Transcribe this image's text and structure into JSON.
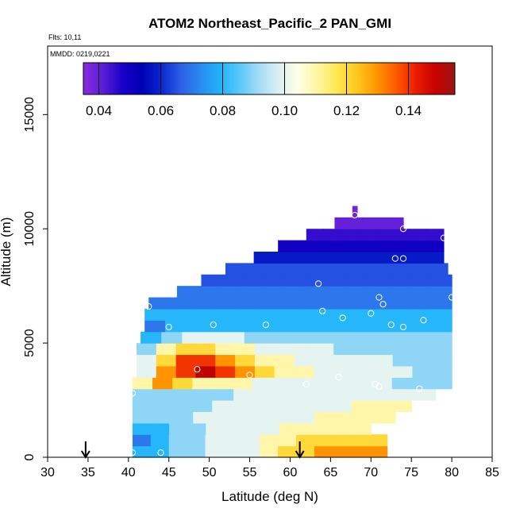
{
  "chart_data": {
    "type": "heatmap",
    "title": "ATOM2 Northeast_Pacific_2 PAN_GMI",
    "flights_label": "Flts: 10,11",
    "mmdd_label": "MMDD: 0219,0221",
    "xlabel": "Latitude (deg N)",
    "ylabel": "Altitude (m)",
    "xlim": [
      30,
      85
    ],
    "ylim": [
      0,
      18000
    ],
    "x_ticks": [
      30,
      35,
      40,
      45,
      50,
      55,
      60,
      65,
      70,
      75,
      80,
      85
    ],
    "y_ticks": [
      0,
      5000,
      10000,
      15000
    ],
    "colorbar": {
      "range": [
        0.035,
        0.155
      ],
      "ticks": [
        0.04,
        0.06,
        0.08,
        0.1,
        0.12,
        0.14
      ],
      "tick_labels": [
        "0.04",
        "0.06",
        "0.08",
        "0.10",
        "0.12",
        "0.14"
      ],
      "colors": [
        "#8a2be2",
        "#5a1ed6",
        "#1a00c8",
        "#0000b4",
        "#0a28d0",
        "#2d5fe6",
        "#2a8cf0",
        "#1eb4fa",
        "#5ac8fa",
        "#a5dcf5",
        "#dcf0f5",
        "#ffffe6",
        "#fff5a0",
        "#ffe650",
        "#ffc81e",
        "#ff9600",
        "#ff5a00",
        "#eb1e00",
        "#c80000",
        "#9b1414"
      ]
    },
    "layers": [
      {
        "alt": [
          0,
          500
        ],
        "lat": [
          40.5,
          72
        ],
        "values": [
          0.08,
          0.08,
          0.09,
          0.09,
          0.1,
          0.1,
          0.1,
          0.11,
          0.12,
          0.12,
          0.13,
          0.13,
          0.13,
          0.13
        ]
      },
      {
        "alt": [
          500,
          1000
        ],
        "lat": [
          40.5,
          72
        ],
        "values": [
          0.07,
          0.08,
          0.09,
          0.09,
          0.1,
          0.1,
          0.1,
          0.11,
          0.11,
          0.12,
          0.12,
          0.12,
          0.12,
          0.12
        ]
      },
      {
        "alt": [
          1000,
          1500
        ],
        "lat": [
          40.5,
          70
        ],
        "values": [
          0.08,
          0.08,
          0.09,
          0.09,
          0.1,
          0.1,
          0.1,
          0.1,
          0.11,
          0.11,
          0.11,
          0.11,
          0.11
        ]
      },
      {
        "alt": [
          1500,
          2000
        ],
        "lat": [
          40.5,
          73
        ],
        "values": [
          0.09,
          0.09,
          0.09,
          0.1,
          0.1,
          0.1,
          0.1,
          0.1,
          0.1,
          0.11,
          0.11,
          0.11,
          0.11
        ]
      },
      {
        "alt": [
          2000,
          2500
        ],
        "lat": [
          40.5,
          75
        ],
        "values": [
          0.09,
          0.09,
          0.09,
          0.09,
          0.1,
          0.1,
          0.1,
          0.1,
          0.1,
          0.1,
          0.1,
          0.11,
          0.11,
          0.11
        ]
      },
      {
        "alt": [
          2500,
          3000
        ],
        "lat": [
          40.5,
          78
        ],
        "values": [
          0.09,
          0.09,
          0.09,
          0.09,
          0.09,
          0.1,
          0.1,
          0.1,
          0.1,
          0.1,
          0.1,
          0.1,
          0.1,
          0.1,
          0.1
        ]
      },
      {
        "alt": [
          3000,
          3500
        ],
        "lat": [
          40.5,
          80
        ],
        "values": [
          0.11,
          0.13,
          0.12,
          0.11,
          0.11,
          0.11,
          0.1,
          0.1,
          0.1,
          0.1,
          0.1,
          0.1,
          0.1,
          0.09,
          0.09,
          0.09
        ]
      },
      {
        "alt": [
          3500,
          4000
        ],
        "lat": [
          41,
          80
        ],
        "values": [
          0.1,
          0.13,
          0.14,
          0.15,
          0.14,
          0.13,
          0.12,
          0.11,
          0.11,
          0.1,
          0.1,
          0.1,
          0.1,
          0.1,
          0.09,
          0.09
        ]
      },
      {
        "alt": [
          4000,
          4500
        ],
        "lat": [
          41,
          80
        ],
        "values": [
          0.1,
          0.12,
          0.14,
          0.14,
          0.13,
          0.12,
          0.11,
          0.11,
          0.1,
          0.1,
          0.1,
          0.1,
          0.1,
          0.09,
          0.09,
          0.09
        ]
      },
      {
        "alt": [
          4500,
          5000
        ],
        "lat": [
          41,
          80
        ],
        "values": [
          0.09,
          0.11,
          0.12,
          0.12,
          0.11,
          0.11,
          0.1,
          0.1,
          0.1,
          0.1,
          0.09,
          0.09,
          0.09,
          0.09,
          0.09,
          0.09
        ]
      },
      {
        "alt": [
          5000,
          5500
        ],
        "lat": [
          41.5,
          80
        ],
        "values": [
          0.08,
          0.09,
          0.1,
          0.1,
          0.1,
          0.09,
          0.09,
          0.09,
          0.09,
          0.09,
          0.09,
          0.09,
          0.09,
          0.09,
          0.09
        ]
      },
      {
        "alt": [
          5500,
          6000
        ],
        "lat": [
          42,
          80
        ],
        "values": [
          0.07,
          0.08,
          0.08,
          0.08,
          0.08,
          0.08,
          0.08,
          0.08,
          0.08,
          0.08,
          0.08,
          0.08,
          0.08,
          0.08,
          0.08
        ]
      },
      {
        "alt": [
          6000,
          6500
        ],
        "lat": [
          42,
          80
        ],
        "values": [
          0.08,
          0.08,
          0.08,
          0.08,
          0.08,
          0.08,
          0.08,
          0.08,
          0.08,
          0.08,
          0.08,
          0.08,
          0.08,
          0.08,
          0.08
        ]
      },
      {
        "alt": [
          6500,
          7000
        ],
        "lat": [
          42.5,
          80
        ],
        "values": [
          0.07,
          0.07,
          0.07,
          0.07,
          0.07,
          0.07,
          0.07,
          0.07,
          0.07,
          0.07,
          0.07,
          0.07,
          0.07,
          0.07
        ]
      },
      {
        "alt": [
          7000,
          7500
        ],
        "lat": [
          46,
          80
        ],
        "values": [
          0.07,
          0.07,
          0.07,
          0.07,
          0.07,
          0.07,
          0.07,
          0.07,
          0.07,
          0.07,
          0.07,
          0.07,
          0.07
        ]
      },
      {
        "alt": [
          7500,
          8000
        ],
        "lat": [
          49,
          80
        ],
        "values": [
          0.065,
          0.065,
          0.065,
          0.065,
          0.065,
          0.065,
          0.065,
          0.065,
          0.065,
          0.065,
          0.065,
          0.065
        ]
      },
      {
        "alt": [
          8000,
          8500
        ],
        "lat": [
          52,
          79.5
        ],
        "values": [
          0.065,
          0.065,
          0.065,
          0.065,
          0.065,
          0.065,
          0.065,
          0.065,
          0.065,
          0.065,
          0.065
        ]
      },
      {
        "alt": [
          8500,
          9000
        ],
        "lat": [
          55.5,
          79
        ],
        "values": [
          0.058,
          0.058,
          0.058,
          0.058,
          0.058,
          0.058,
          0.058,
          0.058,
          0.058,
          0.058
        ]
      },
      {
        "alt": [
          9000,
          9500
        ],
        "lat": [
          58.5,
          79
        ],
        "values": [
          0.05,
          0.05,
          0.05,
          0.05,
          0.05,
          0.05,
          0.05,
          0.05,
          0.05
        ]
      },
      {
        "alt": [
          9500,
          10000
        ],
        "lat": [
          62,
          79
        ],
        "values": [
          0.045,
          0.045,
          0.045,
          0.045,
          0.045,
          0.045,
          0.045,
          0.045
        ]
      },
      {
        "alt": [
          10000,
          10500
        ],
        "lat": [
          65.5,
          74
        ],
        "values": [
          0.04,
          0.04,
          0.04,
          0.04,
          0.04
        ]
      },
      {
        "alt": [
          10500,
          11000
        ],
        "lat": [
          67.7,
          68.3
        ],
        "values": [
          0.038
        ]
      }
    ],
    "points": [
      [
        40.5,
        200
      ],
      [
        44,
        200
      ],
      [
        40.5,
        2800
      ],
      [
        42.5,
        6600
      ],
      [
        45,
        5700
      ],
      [
        48.5,
        3850
      ],
      [
        50.5,
        5800
      ],
      [
        55,
        3600
      ],
      [
        57,
        5800
      ],
      [
        62,
        3200
      ],
      [
        63.5,
        7600
      ],
      [
        64,
        6400
      ],
      [
        66,
        3500
      ],
      [
        66.5,
        6100
      ],
      [
        68,
        10600
      ],
      [
        70,
        6300
      ],
      [
        70.5,
        3200
      ],
      [
        71,
        3100
      ],
      [
        71,
        7000
      ],
      [
        71.5,
        6700
      ],
      [
        72.5,
        5800
      ],
      [
        73,
        8700
      ],
      [
        74,
        8700
      ],
      [
        74,
        5700
      ],
      [
        74,
        10000
      ],
      [
        76,
        3000
      ],
      [
        76.5,
        6000
      ],
      [
        79,
        9600
      ],
      [
        80,
        7000
      ]
    ],
    "arrows": [
      34.7,
      61.2
    ]
  }
}
